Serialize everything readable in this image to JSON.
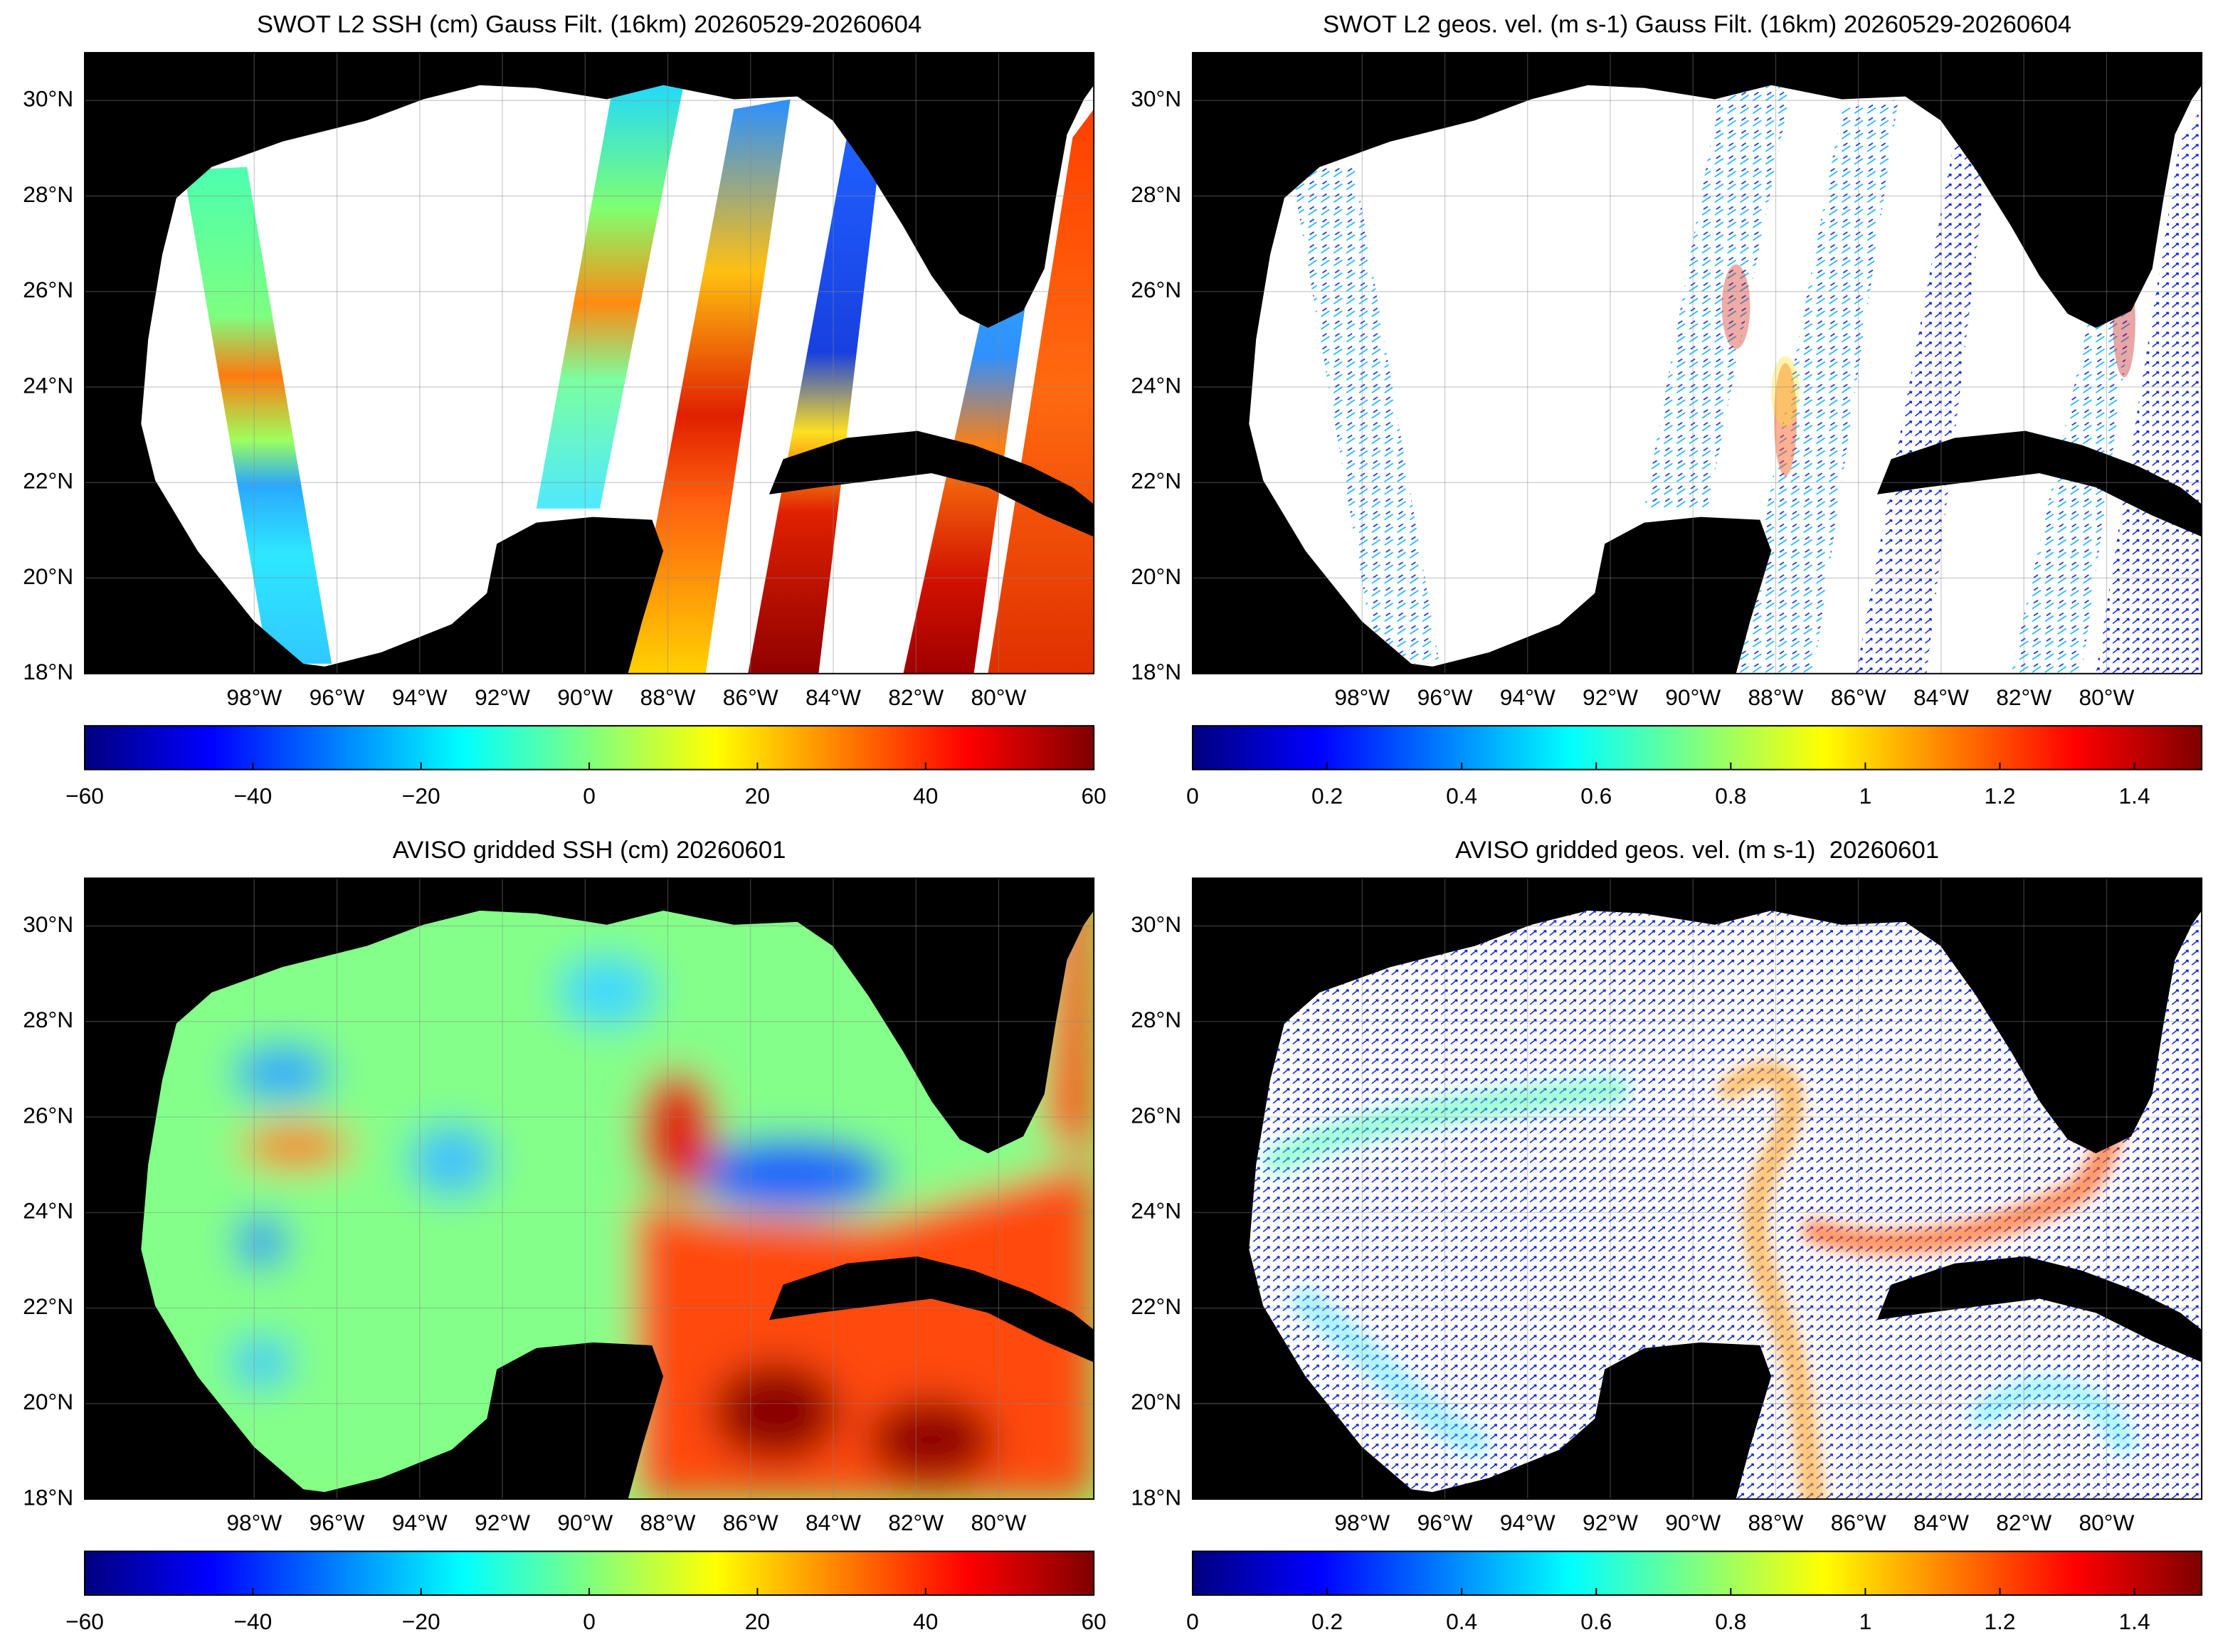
{
  "panels": [
    {
      "title": "SWOT L2 SSH (cm) Gauss Filt. (16km) 20260529-20260604",
      "lonlim": [
        -102.1,
        -77.7
      ],
      "latlim": [
        18,
        31
      ],
      "grid": true,
      "lon_ticks": [
        {
          "value": -98,
          "label": "98°W"
        },
        {
          "value": -96,
          "label": "96°W"
        },
        {
          "value": -94,
          "label": "94°W"
        },
        {
          "value": -92,
          "label": "92°W"
        },
        {
          "value": -90,
          "label": "90°W"
        },
        {
          "value": -88,
          "label": "88°W"
        },
        {
          "value": -86,
          "label": "86°W"
        },
        {
          "value": -84,
          "label": "84°W"
        },
        {
          "value": -82,
          "label": "82°W"
        },
        {
          "value": -80,
          "label": "80°W"
        }
      ],
      "lat_ticks": [
        {
          "value": 18,
          "label": "18°N"
        },
        {
          "value": 20,
          "label": "20°N"
        },
        {
          "value": 22,
          "label": "22°N"
        },
        {
          "value": 24,
          "label": "24°N"
        },
        {
          "value": 26,
          "label": "26°N"
        },
        {
          "value": 28,
          "label": "28°N"
        },
        {
          "value": 30,
          "label": "30°N"
        }
      ],
      "colorbar": {
        "colormap": "jet",
        "lim": [
          -60,
          60
        ],
        "ticks": [
          {
            "value": -60,
            "label": "−60"
          },
          {
            "value": -40,
            "label": "−40"
          },
          {
            "value": -20,
            "label": "−20"
          },
          0,
          20,
          40,
          60
        ]
      }
    },
    {
      "title": "SWOT L2 geos. vel. (m s-1) Gauss Filt. (16km) 20260529-20260604",
      "lonlim": [
        -102.1,
        -77.7
      ],
      "latlim": [
        18,
        31
      ],
      "grid": true,
      "lon_ticks": [
        {
          "value": -98,
          "label": "98°W"
        },
        {
          "value": -96,
          "label": "96°W"
        },
        {
          "value": -94,
          "label": "94°W"
        },
        {
          "value": -92,
          "label": "92°W"
        },
        {
          "value": -90,
          "label": "90°W"
        },
        {
          "value": -88,
          "label": "88°W"
        },
        {
          "value": -86,
          "label": "86°W"
        },
        {
          "value": -84,
          "label": "84°W"
        },
        {
          "value": -82,
          "label": "82°W"
        },
        {
          "value": -80,
          "label": "80°W"
        }
      ],
      "lat_ticks": [
        {
          "value": 18,
          "label": "18°N"
        },
        {
          "value": 20,
          "label": "20°N"
        },
        {
          "value": 22,
          "label": "22°N"
        },
        {
          "value": 24,
          "label": "24°N"
        },
        {
          "value": 26,
          "label": "26°N"
        },
        {
          "value": 28,
          "label": "28°N"
        },
        {
          "value": 30,
          "label": "30°N"
        }
      ],
      "colorbar": {
        "colormap": "jet",
        "lim": [
          0,
          1.5
        ],
        "ticks": [
          0,
          0.2,
          0.4,
          0.6,
          0.8,
          1,
          1.2,
          1.4
        ]
      }
    },
    {
      "title": "AVISO gridded SSH (cm) 20260601",
      "lonlim": [
        -102.1,
        -77.7
      ],
      "latlim": [
        18,
        31
      ],
      "grid": true,
      "lon_ticks": [
        {
          "value": -98,
          "label": "98°W"
        },
        {
          "value": -96,
          "label": "96°W"
        },
        {
          "value": -94,
          "label": "94°W"
        },
        {
          "value": -92,
          "label": "92°W"
        },
        {
          "value": -90,
          "label": "90°W"
        },
        {
          "value": -88,
          "label": "88°W"
        },
        {
          "value": -86,
          "label": "86°W"
        },
        {
          "value": -84,
          "label": "84°W"
        },
        {
          "value": -82,
          "label": "82°W"
        },
        {
          "value": -80,
          "label": "80°W"
        }
      ],
      "lat_ticks": [
        {
          "value": 18,
          "label": "18°N"
        },
        {
          "value": 20,
          "label": "20°N"
        },
        {
          "value": 22,
          "label": "22°N"
        },
        {
          "value": 24,
          "label": "24°N"
        },
        {
          "value": 26,
          "label": "26°N"
        },
        {
          "value": 28,
          "label": "28°N"
        },
        {
          "value": 30,
          "label": "30°N"
        }
      ],
      "colorbar": {
        "colormap": "jet",
        "lim": [
          -60,
          60
        ],
        "ticks": [
          {
            "value": -60,
            "label": "−60"
          },
          {
            "value": -40,
            "label": "−40"
          },
          {
            "value": -20,
            "label": "−20"
          },
          0,
          20,
          40,
          60
        ]
      }
    },
    {
      "title": "AVISO gridded geos. vel. (m s-1)  20260601",
      "lonlim": [
        -102.1,
        -77.7
      ],
      "latlim": [
        18,
        31
      ],
      "grid": true,
      "lon_ticks": [
        {
          "value": -98,
          "label": "98°W"
        },
        {
          "value": -96,
          "label": "96°W"
        },
        {
          "value": -94,
          "label": "94°W"
        },
        {
          "value": -92,
          "label": "92°W"
        },
        {
          "value": -90,
          "label": "90°W"
        },
        {
          "value": -88,
          "label": "88°W"
        },
        {
          "value": -86,
          "label": "86°W"
        },
        {
          "value": -84,
          "label": "84°W"
        },
        {
          "value": -82,
          "label": "82°W"
        },
        {
          "value": -80,
          "label": "80°W"
        }
      ],
      "lat_ticks": [
        {
          "value": 18,
          "label": "18°N"
        },
        {
          "value": 20,
          "label": "20°N"
        },
        {
          "value": 22,
          "label": "22°N"
        },
        {
          "value": 24,
          "label": "24°N"
        },
        {
          "value": 26,
          "label": "26°N"
        },
        {
          "value": 28,
          "label": "28°N"
        },
        {
          "value": 30,
          "label": "30°N"
        }
      ],
      "colorbar": {
        "colormap": "jet",
        "lim": [
          0,
          1.5
        ],
        "ticks": [
          0,
          0.2,
          0.4,
          0.6,
          0.8,
          1,
          1.2,
          1.4
        ]
      }
    }
  ]
}
